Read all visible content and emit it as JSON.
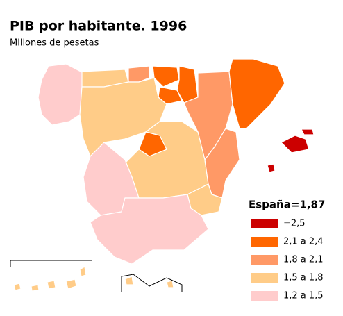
{
  "title": "PIB por habitante. 1996",
  "subtitle": "Millones de pesetas",
  "summary": "España=1,87",
  "legend": [
    {
      "label": "=2,5",
      "color": "#cc0000"
    },
    {
      "label": "2,1 a 2,4",
      "color": "#ff6600"
    },
    {
      "label": "1,8 a 2,1",
      "color": "#ff9966"
    },
    {
      "label": "1,5 a 1,8",
      "color": "#ffcc88"
    },
    {
      "label": "1,2 a 1,5",
      "color": "#ffcccc"
    }
  ]
}
